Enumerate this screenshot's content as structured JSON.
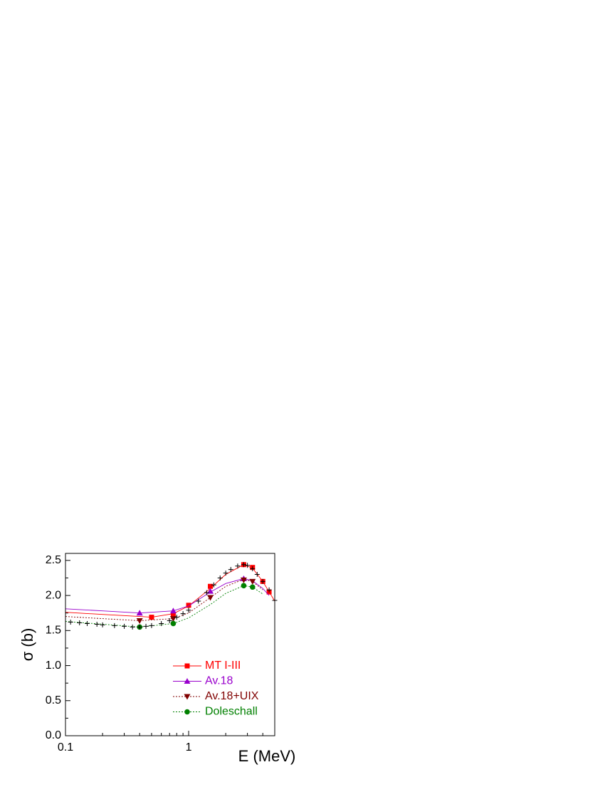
{
  "chart_data": {
    "type": "line",
    "xlabel": "E (MeV)",
    "ylabel": "σ (b)",
    "xscale": "log",
    "xlim": [
      0.1,
      5
    ],
    "ylim": [
      0,
      2.6
    ],
    "xticks": [
      {
        "value": 0.1,
        "label": "0.1"
      },
      1
    ],
    "xminorticks": [
      0.2,
      0.3,
      0.4,
      0.5,
      0.6,
      0.7,
      0.8,
      0.9,
      2,
      3,
      4,
      5
    ],
    "yticks": [
      {
        "value": 0,
        "label": "0.0"
      },
      {
        "value": 0.5,
        "label": "0.5"
      },
      {
        "value": 1,
        "label": "1.0"
      },
      {
        "value": 1.5,
        "label": "1.5"
      },
      {
        "value": 2,
        "label": "2.0"
      },
      {
        "value": 2.5,
        "label": "2.5"
      }
    ],
    "yminorticks": [
      0.25,
      0.75,
      1.25,
      1.75,
      2.25
    ],
    "legend": "lower right",
    "series": [
      {
        "name": "MT I-III",
        "color": "#ff0000",
        "dash": "solid",
        "marker": "square",
        "x": [
          0.1,
          0.2,
          0.4,
          0.5,
          0.75,
          1,
          1.5,
          2,
          2.8,
          3.3,
          4,
          5
        ],
        "values": [
          1.76,
          1.73,
          1.7,
          1.69,
          1.74,
          1.85,
          2.1,
          2.3,
          2.44,
          2.39,
          2.2,
          1.92
        ],
        "points": {
          "x": [
            0.5,
            0.75,
            1,
            1.5,
            2.8,
            3.3,
            4,
            4.5
          ],
          "values": [
            1.69,
            1.72,
            1.86,
            2.13,
            2.44,
            2.4,
            2.2,
            2.05
          ]
        }
      },
      {
        "name": "Av.18",
        "color": "#9900cc",
        "dash": "solid",
        "marker": "triangle-up",
        "x": [
          0.1,
          0.2,
          0.4,
          0.75,
          1,
          1.5,
          2,
          2.8,
          3.3,
          4,
          4.5
        ],
        "values": [
          1.81,
          1.78,
          1.75,
          1.78,
          1.85,
          2.05,
          2.17,
          2.24,
          2.21,
          2.1,
          2.0
        ],
        "points": {
          "x": [
            0.4,
            0.75,
            1.5,
            2.8
          ],
          "values": [
            1.75,
            1.78,
            2.06,
            2.24
          ]
        }
      },
      {
        "name": "Av.18+UIX",
        "color": "#800000",
        "dash": "dotted",
        "marker": "triangle-down",
        "x": [
          0.1,
          0.2,
          0.4,
          0.75,
          1,
          1.5,
          2,
          2.8,
          3.3,
          4
        ],
        "values": [
          1.7,
          1.67,
          1.64,
          1.67,
          1.75,
          1.97,
          2.13,
          2.23,
          2.2,
          2.08
        ],
        "points": {
          "x": [
            0.4,
            0.75,
            1.5,
            2.8,
            3.3
          ],
          "values": [
            1.64,
            1.67,
            1.97,
            2.22,
            2.2
          ]
        }
      },
      {
        "name": "Doleschall",
        "color": "#008000",
        "dash": "dotted",
        "marker": "circle",
        "x": [
          0.1,
          0.2,
          0.4,
          0.75,
          1,
          1.5,
          2,
          2.8,
          3.3,
          4
        ],
        "values": [
          1.63,
          1.59,
          1.55,
          1.6,
          1.68,
          1.87,
          2.03,
          2.14,
          2.12,
          2.02
        ],
        "points": {
          "x": [
            0.4,
            0.75,
            2.8,
            3.3
          ],
          "values": [
            1.55,
            1.6,
            2.14,
            2.12
          ]
        }
      },
      {
        "color": "#000000",
        "marker": "plus",
        "x": [
          0.11,
          0.13,
          0.15,
          0.18,
          0.2,
          0.25,
          0.3,
          0.35,
          0.4,
          0.45,
          0.5,
          0.6,
          0.7,
          0.8,
          0.9,
          1.0,
          1.2,
          1.4,
          1.6,
          1.8,
          2.0,
          2.2,
          2.5,
          2.8,
          3.0,
          3.3,
          3.6,
          4.0,
          4.5,
          5.0
        ],
        "values": [
          1.62,
          1.61,
          1.6,
          1.59,
          1.58,
          1.57,
          1.56,
          1.55,
          1.55,
          1.56,
          1.57,
          1.6,
          1.64,
          1.69,
          1.74,
          1.79,
          1.92,
          2.04,
          2.15,
          2.25,
          2.32,
          2.37,
          2.42,
          2.44,
          2.43,
          2.38,
          2.3,
          2.2,
          2.08,
          1.93
        ]
      }
    ]
  }
}
